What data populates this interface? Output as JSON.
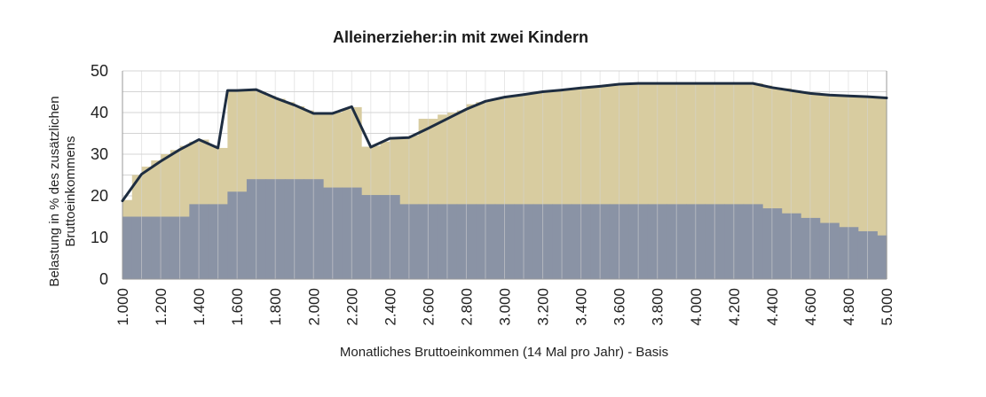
{
  "chart_data": {
    "type": "area",
    "title": "Alleinerzieher:in mit zwei Kindern",
    "xlabel": "Monatliches Bruttoeinkommen (14 Mal pro Jahr) - Basis",
    "ylabel_line1": "Belastung in % des zusätzlichen",
    "ylabel_line2": "Bruttoeinkommens",
    "ylim": [
      0,
      50
    ],
    "yticks": [
      0,
      10,
      20,
      30,
      40,
      50
    ],
    "xlim": [
      1000,
      5000
    ],
    "x_tick_labels": [
      "1.000",
      "1.200",
      "1.400",
      "1.600",
      "1.800",
      "2.000",
      "2.200",
      "2.400",
      "2.600",
      "2.800",
      "3.000",
      "3.200",
      "3.400",
      "3.600",
      "3.800",
      "4.000",
      "4.200",
      "4.400",
      "4.600",
      "4.800",
      "5.000"
    ],
    "x_tick_values": [
      1000,
      1200,
      1400,
      1600,
      1800,
      2000,
      2200,
      2400,
      2600,
      2800,
      3000,
      3200,
      3400,
      3600,
      3800,
      4000,
      4200,
      4400,
      4600,
      4800,
      5000
    ],
    "grid": true,
    "colors": {
      "line": "#1e2d40",
      "area": "#d8cca0",
      "base": "#8a93a5",
      "grid": "#d4d4d4"
    },
    "series": [
      {
        "kind": "step-area",
        "bin_width": 50,
        "x": [
          1000,
          1050,
          1100,
          1150,
          1200,
          1250,
          1300,
          1350,
          1400,
          1450,
          1500,
          1550,
          1600,
          1650,
          1700,
          1750,
          1800,
          1850,
          1900,
          1950,
          2000,
          2050,
          2100,
          2150,
          2200,
          2250,
          2300,
          2350,
          2400,
          2450,
          2500,
          2550,
          2600,
          2650,
          2700,
          2750,
          2800,
          2850,
          2900,
          2950,
          3000,
          3050,
          3100,
          3150,
          3200,
          3250,
          3300,
          3350,
          3400,
          3450,
          3500,
          3550,
          3600,
          3650,
          3700,
          3750,
          3800,
          3850,
          3900,
          3950,
          4000,
          4050,
          4100,
          4150,
          4200,
          4250,
          4300,
          4350,
          4400,
          4450,
          4500,
          4550,
          4600,
          4650,
          4700,
          4750,
          4800,
          4850,
          4900,
          4950
        ],
        "values": [
          19,
          25,
          27,
          28.5,
          30,
          31,
          32,
          33,
          33.5,
          32,
          31.5,
          45.3,
          45.3,
          45.5,
          45,
          44,
          43.3,
          42.5,
          41.5,
          40.5,
          40,
          40,
          40,
          40.8,
          41.3,
          31.8,
          32,
          33,
          34,
          34,
          34.5,
          38.5,
          38.5,
          39.5,
          40,
          40.5,
          42,
          42.5,
          43,
          43.5,
          43.8,
          44,
          44.5,
          44.8,
          45,
          45.3,
          45.5,
          45.8,
          46,
          46.3,
          46.5,
          46.8,
          47,
          47,
          47,
          47,
          47,
          47,
          47,
          47,
          47,
          47,
          47,
          47,
          47,
          47,
          47,
          46.5,
          46,
          45.8,
          45.3,
          45,
          44.8,
          44.5,
          44.3,
          44,
          44,
          43.8,
          43.6,
          43.5
        ]
      },
      {
        "kind": "step-area",
        "bin_width": 50,
        "x": [
          1000,
          1050,
          1100,
          1150,
          1200,
          1250,
          1300,
          1350,
          1400,
          1450,
          1500,
          1550,
          1600,
          1650,
          1700,
          1750,
          1800,
          1850,
          1900,
          1950,
          2000,
          2050,
          2100,
          2150,
          2200,
          2250,
          2300,
          2350,
          2400,
          2450,
          2500,
          2550,
          2600,
          2650,
          2700,
          2750,
          2800,
          2850,
          2900,
          2950,
          3000,
          3050,
          3100,
          3150,
          3200,
          3250,
          3300,
          3350,
          3400,
          3450,
          3500,
          3550,
          3600,
          3650,
          3700,
          3750,
          3800,
          3850,
          3900,
          3950,
          4000,
          4050,
          4100,
          4150,
          4200,
          4250,
          4300,
          4350,
          4400,
          4450,
          4500,
          4550,
          4600,
          4650,
          4700,
          4750,
          4800,
          4850,
          4900,
          4950
        ],
        "values": [
          15,
          15,
          15,
          15,
          15,
          15,
          15,
          18,
          18,
          18,
          18,
          21,
          21,
          24,
          24,
          24,
          24,
          24,
          24,
          24,
          24,
          22,
          22,
          22,
          22,
          20.2,
          20.2,
          20.2,
          20.2,
          18,
          18,
          18,
          18,
          18,
          18,
          18,
          18,
          18,
          18,
          18,
          18,
          18,
          18,
          18,
          18,
          18,
          18,
          18,
          18,
          18,
          18,
          18,
          18,
          18,
          18,
          18,
          18,
          18,
          18,
          18,
          18,
          18,
          18,
          18,
          18,
          18,
          18,
          17,
          17,
          15.8,
          15.8,
          14.7,
          14.7,
          13.5,
          13.5,
          12.5,
          12.5,
          11.5,
          11.5,
          10.5
        ]
      },
      {
        "kind": "line",
        "x": [
          1000,
          1100,
          1200,
          1300,
          1400,
          1500,
          1550,
          1600,
          1700,
          1800,
          1900,
          2000,
          2100,
          2200,
          2300,
          2400,
          2500,
          2600,
          2700,
          2800,
          2900,
          3000,
          3100,
          3200,
          3300,
          3400,
          3500,
          3600,
          3700,
          3800,
          3900,
          4000,
          4100,
          4200,
          4300,
          4400,
          4500,
          4600,
          4700,
          4800,
          4900,
          5000
        ],
        "values": [
          18.8,
          25.2,
          28.3,
          31.1,
          33.5,
          31.5,
          45.3,
          45.3,
          45.5,
          43.5,
          41.8,
          39.8,
          39.8,
          41.4,
          31.7,
          33.8,
          34,
          36.2,
          38.5,
          40.8,
          42.7,
          43.7,
          44.3,
          45,
          45.4,
          45.9,
          46.3,
          46.8,
          47,
          47,
          47,
          47,
          47,
          47,
          47,
          46,
          45.3,
          44.6,
          44.2,
          44,
          43.8,
          43.5
        ]
      }
    ]
  }
}
